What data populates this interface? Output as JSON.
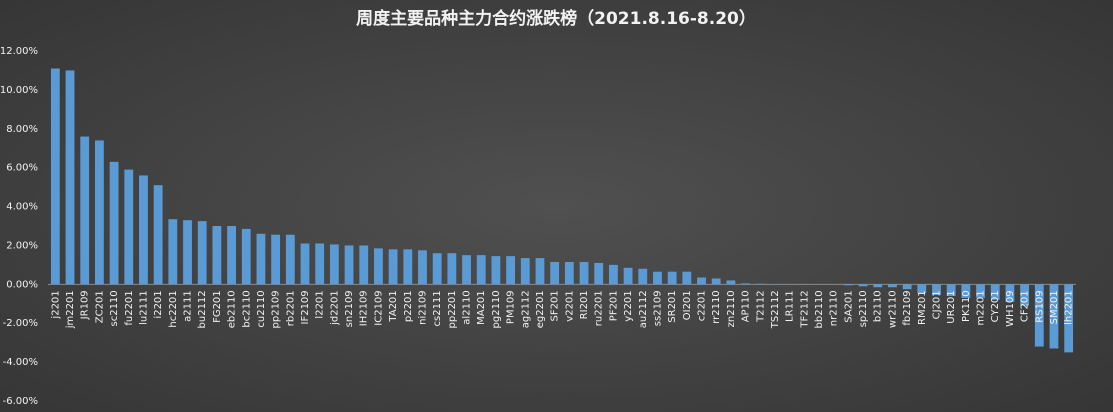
{
  "chart_data": {
    "type": "bar",
    "title": "周度主要品种主力合约涨跌榜（2021.8.16-8.20）",
    "categories": [
      "j2201",
      "jm2201",
      "JR109",
      "ZC201",
      "sc2110",
      "fu2201",
      "lu2111",
      "i2201",
      "hc2201",
      "a2111",
      "bu2112",
      "FG201",
      "eb2110",
      "bc2110",
      "cu2110",
      "pp2109",
      "rb2201",
      "IF2109",
      "l2201",
      "jd2201",
      "sn2109",
      "IH2109",
      "IC2109",
      "TA201",
      "p2201",
      "ni2109",
      "cs2111",
      "pp2201",
      "al2110",
      "MA201",
      "pg2110",
      "PM109",
      "ag2112",
      "eg2201",
      "SF201",
      "v2201",
      "RI201",
      "ru2201",
      "PF201",
      "y2201",
      "au2112",
      "ss2109",
      "SR201",
      "OI201",
      "c2201",
      "rr2110",
      "zn2110",
      "AP110",
      "T2112",
      "TS2112",
      "LR111",
      "TF2112",
      "bb2110",
      "nr2110",
      "SA201",
      "sp2110",
      "b2110",
      "wr2110",
      "fb2109",
      "RM201",
      "CJ201",
      "UR201",
      "PK110",
      "m2201",
      "CY201",
      "WH109",
      "CF201",
      "RS109",
      "SM201",
      "lh2201"
    ],
    "values": [
      11.1,
      11.0,
      7.6,
      7.4,
      6.3,
      5.9,
      5.6,
      5.1,
      3.35,
      3.3,
      3.25,
      3.0,
      3.0,
      2.85,
      2.6,
      2.55,
      2.55,
      2.1,
      2.1,
      2.05,
      2.0,
      2.0,
      1.85,
      1.8,
      1.8,
      1.75,
      1.6,
      1.6,
      1.5,
      1.5,
      1.45,
      1.45,
      1.35,
      1.35,
      1.15,
      1.15,
      1.15,
      1.1,
      1.0,
      0.85,
      0.8,
      0.65,
      0.65,
      0.65,
      0.35,
      0.3,
      0.2,
      0.05,
      0.03,
      0.01,
      0,
      0,
      0,
      0,
      -0.05,
      -0.1,
      -0.15,
      -0.15,
      -0.25,
      -0.45,
      -0.55,
      -0.6,
      -0.7,
      -0.7,
      -0.8,
      -0.9,
      -1.1,
      -3.2,
      -3.3,
      -3.5
    ],
    "color": "#5b9bd5",
    "ylim": [
      -6,
      12
    ],
    "yticks": [
      {
        "value": -6,
        "label": "-6.00%"
      },
      {
        "value": -4,
        "label": "-4.00%"
      },
      {
        "value": -2,
        "label": "-2.00%"
      },
      {
        "value": 0,
        "label": "0.00%"
      },
      {
        "value": 2,
        "label": "2.00%"
      },
      {
        "value": 4,
        "label": "4.00%"
      },
      {
        "value": 6,
        "label": "6.00%"
      },
      {
        "value": 8,
        "label": "8.00%"
      },
      {
        "value": 10,
        "label": "10.00%"
      },
      {
        "value": 12,
        "label": "12.00%"
      }
    ],
    "grid": false
  }
}
